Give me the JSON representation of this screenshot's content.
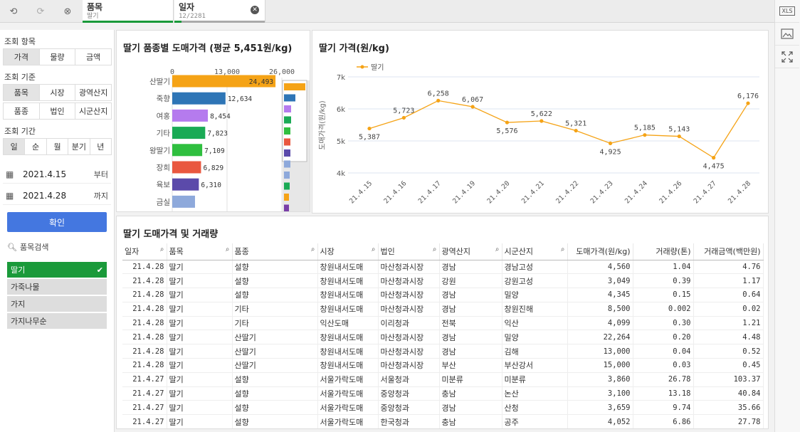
{
  "top": {
    "selections": [
      {
        "field": "품목",
        "value": "딸기",
        "bar_color": "#1a9a3a"
      },
      {
        "field": "일자",
        "value": "12/2281",
        "bar_color": "#aaaaaa"
      }
    ]
  },
  "toolbar_right": {
    "xls_label": "XLS"
  },
  "left": {
    "query_item_label": "조회 항목",
    "query_items": [
      "가격",
      "물량",
      "금액"
    ],
    "query_basis_label": "조회 기준",
    "query_basis_row1": [
      "품목",
      "시장",
      "광역산지"
    ],
    "query_basis_row2": [
      "품종",
      "법인",
      "시군산지"
    ],
    "query_period_label": "조회 기간",
    "periods": [
      "일",
      "순",
      "월",
      "분기",
      "년"
    ],
    "start_date": "2021.4.15",
    "start_suffix": "부터",
    "end_date": "2021.4.28",
    "end_suffix": "까지",
    "confirm": "확인",
    "search_placeholder": "품목검색",
    "items": [
      "딸기",
      "가죽나물",
      "가지",
      "가지나무순"
    ]
  },
  "bar_chart": {
    "title": "딸기 품종별 도매가격 (평균 5,451원/kg)",
    "chart_data": {
      "type": "bar",
      "orientation": "horizontal",
      "categories": [
        "산딸기",
        "죽향",
        "여홍",
        "기타",
        "왕딸기",
        "장희",
        "육보",
        "금실"
      ],
      "values": [
        24493,
        12634,
        8454,
        7823,
        7109,
        6829,
        6310,
        5400
      ],
      "value_labels": [
        "24,493",
        "12,634",
        "8,454",
        "7,823",
        "7,109",
        "6,829",
        "6,310",
        ""
      ],
      "colors": [
        "#f5a316",
        "#2e75b6",
        "#b57bee",
        "#1aaa55",
        "#2fbf3f",
        "#e9573f",
        "#5b4aaa",
        "#8ea9db"
      ],
      "xticks": [
        "0",
        "13,000",
        "26,000"
      ],
      "xlim": [
        0,
        26000
      ],
      "mini_colors": [
        "#f5a316",
        "#2e75b6",
        "#b57bee",
        "#1aaa55",
        "#2fbf3f",
        "#e9573f",
        "#5b4aaa",
        "#8ea9db",
        "#8ea9db",
        "#1aaa55",
        "#f5a316",
        "#7a3fa8"
      ]
    }
  },
  "line_chart": {
    "title": "딸기 가격(원/kg)",
    "chart_data": {
      "type": "line",
      "x": [
        "21.4.15",
        "21.4.16",
        "21.4.17",
        "21.4.19",
        "21.4.20",
        "21.4.21",
        "21.4.22",
        "21.4.23",
        "21.4.24",
        "21.4.26",
        "21.4.27",
        "21.4.28"
      ],
      "series": [
        {
          "name": "딸기",
          "values": [
            5387,
            5723,
            6258,
            6067,
            5576,
            5622,
            5321,
            4925,
            5185,
            5143,
            4475,
            6176
          ]
        }
      ],
      "value_labels": [
        "5,387",
        "5,723",
        "6,258",
        "6,067",
        "5,576",
        "5,622",
        "5,321",
        "4,925",
        "5,185",
        "5,143",
        "4,475",
        "6,176"
      ],
      "ylabel": "도매가격(원/kg)",
      "yticks": [
        "4k",
        "5k",
        "6k",
        "7k"
      ],
      "ylim": [
        4000,
        7000
      ],
      "color": "#f5a316",
      "legend": "top-left"
    }
  },
  "table": {
    "title": "딸기 도매가격 및 거래량",
    "columns": [
      "일자",
      "품목",
      "품종",
      "시장",
      "법인",
      "광역산지",
      "시군산지",
      "도매가격(원/kg)",
      "거래량(톤)",
      "거래금액(백만원)"
    ],
    "rows": [
      [
        "21.4.28",
        "딸기",
        "설향",
        "창원내서도매",
        "마산청과시장",
        "경남",
        "경남고성",
        "4,560",
        "1.04",
        "4.76"
      ],
      [
        "21.4.28",
        "딸기",
        "설향",
        "창원내서도매",
        "마산청과시장",
        "강원",
        "강원고성",
        "3,049",
        "0.39",
        "1.17"
      ],
      [
        "21.4.28",
        "딸기",
        "설향",
        "창원내서도매",
        "마산청과시장",
        "경남",
        "밀양",
        "4,345",
        "0.15",
        "0.64"
      ],
      [
        "21.4.28",
        "딸기",
        "기타",
        "창원내서도매",
        "마산청과시장",
        "경남",
        "창원진해",
        "8,500",
        "0.002",
        "0.02"
      ],
      [
        "21.4.28",
        "딸기",
        "기타",
        "익산도매",
        "이리청과",
        "전북",
        "익산",
        "4,099",
        "0.30",
        "1.21"
      ],
      [
        "21.4.28",
        "딸기",
        "산딸기",
        "창원내서도매",
        "마산청과시장",
        "경남",
        "밀양",
        "22,264",
        "0.20",
        "4.48"
      ],
      [
        "21.4.28",
        "딸기",
        "산딸기",
        "창원내서도매",
        "마산청과시장",
        "경남",
        "김해",
        "13,000",
        "0.04",
        "0.52"
      ],
      [
        "21.4.28",
        "딸기",
        "산딸기",
        "창원내서도매",
        "마산청과시장",
        "부산",
        "부산강서",
        "15,000",
        "0.03",
        "0.45"
      ],
      [
        "21.4.27",
        "딸기",
        "설향",
        "서울가락도매",
        "서울청과",
        "미분류",
        "미분류",
        "3,860",
        "26.78",
        "103.37"
      ],
      [
        "21.4.27",
        "딸기",
        "설향",
        "서울가락도매",
        "중앙청과",
        "충남",
        "논산",
        "3,100",
        "13.18",
        "40.84"
      ],
      [
        "21.4.27",
        "딸기",
        "설향",
        "서울가락도매",
        "중앙청과",
        "경남",
        "산청",
        "3,659",
        "9.74",
        "35.66"
      ],
      [
        "21.4.27",
        "딸기",
        "설향",
        "서울가락도매",
        "한국청과",
        "충남",
        "공주",
        "4,052",
        "6.86",
        "27.78"
      ]
    ]
  }
}
